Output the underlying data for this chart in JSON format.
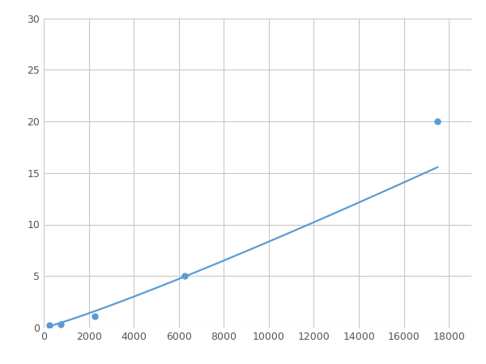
{
  "x_points": [
    250,
    750,
    2250,
    6250,
    17500
  ],
  "y_points": [
    0.2,
    0.35,
    1.1,
    5.0,
    20.0
  ],
  "line_color": "#5b9bd5",
  "marker_color": "#5b9bd5",
  "marker_size": 6,
  "line_width": 1.6,
  "xlim": [
    0,
    19000
  ],
  "ylim": [
    0,
    30
  ],
  "xticks": [
    0,
    2000,
    4000,
    6000,
    8000,
    10000,
    12000,
    14000,
    16000,
    18000
  ],
  "yticks": [
    0,
    5,
    10,
    15,
    20,
    25,
    30
  ],
  "grid_color": "#c8c8c8",
  "background_color": "#ffffff",
  "fig_background": "#ffffff",
  "tick_label_size": 9,
  "tick_label_color": "#555555"
}
